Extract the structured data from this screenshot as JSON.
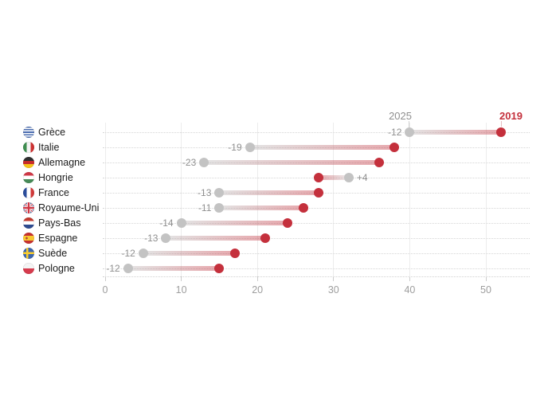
{
  "chart_data": {
    "type": "dumbbell",
    "title": "",
    "legend": {
      "start_label": "2025",
      "end_label": "2019",
      "position": "above-first-row"
    },
    "colors": {
      "start_dot": "#c3c3c3",
      "end_dot": "#c4303c",
      "start_text": "#8f8f8f",
      "end_text": "#c4303c",
      "change_text": "#8f8f8f"
    },
    "x_axis": {
      "min": 0,
      "max": 55.8,
      "ticks": [
        0,
        10,
        20,
        30,
        40,
        50
      ],
      "grid": true
    },
    "rows": [
      {
        "country": "Grèce",
        "flag": "greece",
        "flag_icon": "flag-greece-icon",
        "value_2025": 40,
        "value_2019": 52,
        "change_label": "-12"
      },
      {
        "country": "Italie",
        "flag": "italy",
        "flag_icon": "flag-italy-icon",
        "value_2025": 19,
        "value_2019": 38,
        "change_label": "-19"
      },
      {
        "country": "Allemagne",
        "flag": "germany",
        "flag_icon": "flag-germany-icon",
        "value_2025": 13,
        "value_2019": 36,
        "change_label": "-23"
      },
      {
        "country": "Hongrie",
        "flag": "hungary",
        "flag_icon": "flag-hungary-icon",
        "value_2025": 32,
        "value_2019": 28,
        "change_label": "+4"
      },
      {
        "country": "France",
        "flag": "france",
        "flag_icon": "flag-france-icon",
        "value_2025": 15,
        "value_2019": 28,
        "change_label": "-13"
      },
      {
        "country": "Royaume-Uni",
        "flag": "uk",
        "flag_icon": "flag-uk-icon",
        "value_2025": 15,
        "value_2019": 26,
        "change_label": "-11"
      },
      {
        "country": "Pays-Bas",
        "flag": "netherlands",
        "flag_icon": "flag-netherlands-icon",
        "value_2025": 10,
        "value_2019": 24,
        "change_label": "-14"
      },
      {
        "country": "Espagne",
        "flag": "spain",
        "flag_icon": "flag-spain-icon",
        "value_2025": 8,
        "value_2019": 21,
        "change_label": "-13"
      },
      {
        "country": "Suède",
        "flag": "sweden",
        "flag_icon": "flag-sweden-icon",
        "value_2025": 5,
        "value_2019": 17,
        "change_label": "-12"
      },
      {
        "country": "Pologne",
        "flag": "poland",
        "flag_icon": "flag-poland-icon",
        "value_2025": 3,
        "value_2019": 15,
        "change_label": "-12"
      }
    ]
  }
}
